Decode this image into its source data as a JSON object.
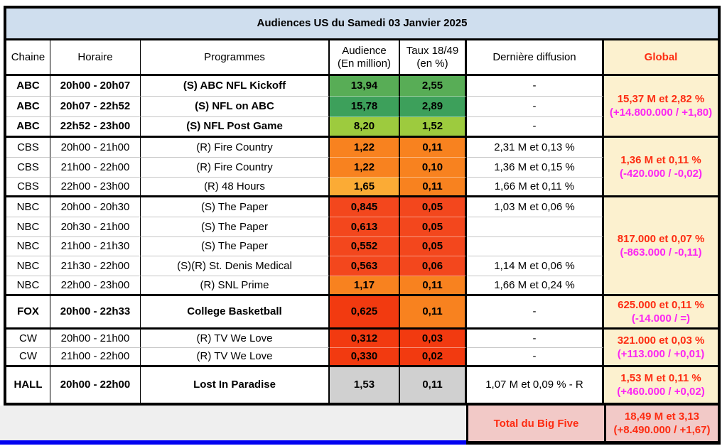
{
  "colors": {
    "title_bg": "#cfdeee",
    "header_cream": "#fcf1cf",
    "green_dark": "#3da05b",
    "green_mid": "#58ad56",
    "green_lime": "#9dcb3e",
    "orange": "#f8821f",
    "amber": "#fbab35",
    "red_orange": "#f3471d",
    "red_deep": "#f23a10",
    "gray_cell": "#d0d0d0",
    "pink": "#f2c9c7",
    "footer_gray": "#efefef",
    "blue_bar": "#0202f0",
    "text_red": "#fd2c12",
    "text_magenta": "#fb25f3",
    "text_black": "#000000"
  },
  "chart_data": {
    "type": "table",
    "title": "Audiences US du Samedi 03 Janvier 2025",
    "columns": [
      {
        "id": "channel",
        "label": "Chaine"
      },
      {
        "id": "time",
        "label": "Horaire"
      },
      {
        "id": "programme",
        "label": "Programmes"
      },
      {
        "id": "audience",
        "label": "Audience\n(En million)"
      },
      {
        "id": "rating",
        "label": "Taux 18/49\n(en %)"
      },
      {
        "id": "last",
        "label": "Dernière diffusion"
      },
      {
        "id": "global",
        "label": "Global"
      }
    ],
    "rows": [
      {
        "channel": "ABC",
        "time": "20h00 - 20h07",
        "programme": "(S) ABC NFL Kickoff",
        "audience": "13,94",
        "rating": "2,55",
        "last": "-",
        "bold": true,
        "aud_color": "green_mid",
        "rat_color": "green_mid",
        "sep": "light"
      },
      {
        "channel": "ABC",
        "time": "20h07 - 22h52",
        "programme": "(S) NFL on ABC",
        "audience": "15,78",
        "rating": "2,89",
        "last": "-",
        "bold": true,
        "aud_color": "green_dark",
        "rat_color": "green_dark",
        "sep": "light"
      },
      {
        "channel": "ABC",
        "time": "22h52 - 23h00",
        "programme": "(S) NFL Post Game",
        "audience": "8,20",
        "rating": "1,52",
        "last": "-",
        "bold": true,
        "aud_color": "green_lime",
        "rat_color": "green_lime",
        "sep": "group"
      },
      {
        "channel": "CBS",
        "time": "20h00 - 21h00",
        "programme": "(R) Fire Country",
        "audience": "1,22",
        "rating": "0,11",
        "last": "2,31 M et 0,13 %",
        "bold": false,
        "aud_color": "orange",
        "rat_color": "orange",
        "sep": "light"
      },
      {
        "channel": "CBS",
        "time": "21h00 - 22h00",
        "programme": "(R) Fire Country",
        "audience": "1,22",
        "rating": "0,10",
        "last": "1,36 M et 0,15 %",
        "bold": false,
        "aud_color": "orange",
        "rat_color": "orange",
        "sep": "light"
      },
      {
        "channel": "CBS",
        "time": "22h00 - 23h00",
        "programme": "(R) 48 Hours",
        "audience": "1,65",
        "rating": "0,11",
        "last": "1,66 M et 0,11 %",
        "bold": false,
        "aud_color": "amber",
        "rat_color": "orange",
        "sep": "group"
      },
      {
        "channel": "NBC",
        "time": "20h00 - 20h30",
        "programme": "(S) The Paper",
        "audience": "0,845",
        "rating": "0,05",
        "last": "1,03 M et 0,06 %",
        "bold": false,
        "aud_color": "red_orange",
        "rat_color": "red_orange",
        "sep": "light"
      },
      {
        "channel": "NBC",
        "time": "20h30 - 21h00",
        "programme": "(S) The Paper",
        "audience": "0,613",
        "rating": "0,05",
        "last": "",
        "bold": false,
        "aud_color": "red_orange",
        "rat_color": "red_orange",
        "sep": "light"
      },
      {
        "channel": "NBC",
        "time": "21h00 - 21h30",
        "programme": "(S) The Paper",
        "audience": "0,552",
        "rating": "0,05",
        "last": "",
        "bold": false,
        "aud_color": "red_orange",
        "rat_color": "red_orange",
        "sep": "light"
      },
      {
        "channel": "NBC",
        "time": "21h30 - 22h00",
        "programme": "(S)(R) St. Denis Medical",
        "audience": "0,563",
        "rating": "0,06",
        "last": "1,14 M et 0,06 %",
        "bold": false,
        "aud_color": "red_orange",
        "rat_color": "red_orange",
        "sep": "light"
      },
      {
        "channel": "NBC",
        "time": "22h00 - 23h00",
        "programme": "(R) SNL Prime",
        "audience": "1,17",
        "rating": "0,11",
        "last": "1,66 M et 0,24 %",
        "bold": false,
        "aud_color": "orange",
        "rat_color": "orange",
        "sep": "group"
      },
      {
        "channel": "FOX",
        "time": "20h00 - 22h33",
        "programme": "College Basketball",
        "audience": "0,625",
        "rating": "0,11",
        "last": "-",
        "bold": true,
        "aud_color": "red_deep",
        "rat_color": "orange",
        "sep": "group"
      },
      {
        "channel": "CW",
        "time": "20h00 - 21h00",
        "programme": "(R) TV We Love",
        "audience": "0,312",
        "rating": "0,03",
        "last": "-",
        "bold": false,
        "aud_color": "red_deep",
        "rat_color": "red_deep",
        "sep": "light"
      },
      {
        "channel": "CW",
        "time": "21h00 - 22h00",
        "programme": "(R) TV We Love",
        "audience": "0,330",
        "rating": "0,02",
        "last": "-",
        "bold": false,
        "aud_color": "red_deep",
        "rat_color": "red_deep",
        "sep": "group"
      },
      {
        "channel": "HALL",
        "time": "20h00 - 22h00",
        "programme": "Lost In Paradise",
        "audience": "1,53",
        "rating": "0,11",
        "last": "1,07 M et 0,09 % - R",
        "bold": true,
        "aud_color": "gray_cell",
        "rat_color": "gray_cell",
        "sep": "end"
      }
    ],
    "global_column": [
      {
        "group": "ABC",
        "line1": "15,37 M et 2,82 %",
        "line2": "(+14.800.000 / +1,80)",
        "start": 3,
        "span": 3,
        "sep": "group"
      },
      {
        "group": "CBS",
        "line1": "1,36 M et 0,11 %",
        "line2": "(-420.000 / -0,02)",
        "start": 6,
        "span": 3,
        "sep": "group"
      },
      {
        "group": "NBC",
        "line1": "817.000 et 0,07 %",
        "line2": "(-863.000 / -0,11)",
        "start": 9,
        "span": 5,
        "sep": "group"
      },
      {
        "group": "FOX",
        "line1": "625.000 et 0,11 %",
        "line2": "(-14.000 / =)",
        "start": 14,
        "span": 1,
        "sep": "group"
      },
      {
        "group": "CW",
        "line1": "321.000 et 0,03 %",
        "line2": "(+113.000 / +0,01)",
        "start": 15,
        "span": 2,
        "sep": "group"
      },
      {
        "group": "HALL",
        "line1": "1,53 M et 0,11 %",
        "line2": "(+460.000 / +0,02)",
        "start": 17,
        "span": 1,
        "sep": "end"
      }
    ],
    "footer": {
      "total_label": "Total du Big Five",
      "total_line1": "18,49 M et 3,13",
      "total_line2": "(+8.490.000 / +1,67)"
    }
  }
}
